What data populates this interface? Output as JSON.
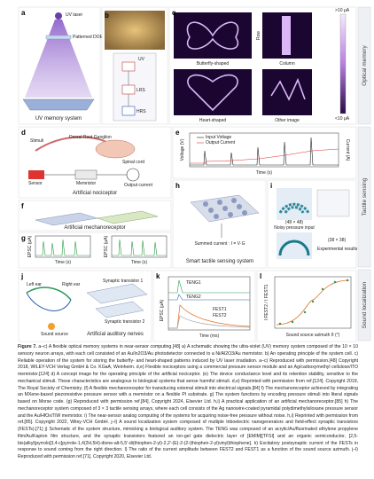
{
  "side_labels": [
    "Optical memory",
    "Tactile sensing",
    "Sound localization"
  ],
  "panels": [
    {
      "letter": "a",
      "texts": [
        "UV laser",
        "Patterned DOE",
        "UV memory system"
      ]
    },
    {
      "letter": "b",
      "texts": [
        "UV",
        "LRS",
        "HRS"
      ]
    },
    {
      "letter": "c",
      "texts": [
        "Butterfly-shaped",
        "Column",
        "Row",
        "Heart-shaped",
        "Other image",
        ">10 μA",
        "<10 μA"
      ]
    },
    {
      "letter": "d",
      "texts": [
        "Stimuli",
        "Dorsal Root Ganglion",
        "Spinal cord",
        "Sensor",
        "Memristor",
        "Output current",
        "Artificial nociceptor"
      ]
    },
    {
      "letter": "e",
      "texts": [
        "Input Voltage",
        "Output Current",
        "Time (s)",
        "Voltage (V)",
        "Current (A)"
      ]
    },
    {
      "letter": "f",
      "texts": [
        "Artificial mechanoreceptor"
      ]
    },
    {
      "letter": "g",
      "texts": [
        "Time (s)",
        "Time (s)",
        "EPSC (μA)",
        "EPSC (μA)"
      ]
    },
    {
      "letter": "h",
      "texts": [
        "Summed current : I = V·G",
        "Smart tactile sensing system"
      ]
    },
    {
      "letter": "i",
      "texts": [
        "(48 × 48)",
        "Noisy pressure input",
        "(38 × 38)",
        "Experimental results"
      ]
    },
    {
      "letter": "j",
      "texts": [
        "Left ear",
        "Right ear",
        "Synaptic transistor 1",
        "Synaptic transistor 2",
        "Sound source",
        "Artificial auditory nerves"
      ]
    },
    {
      "letter": "k",
      "texts": [
        "TENG1",
        "TENG2",
        "FEST1",
        "FEST2",
        "EPSC (μA)",
        "Time (ms)"
      ]
    },
    {
      "letter": "l",
      "texts": [
        "Sound source azimuth θ (°)",
        "I FEST2 / I FEST1"
      ]
    }
  ],
  "caption": {
    "label": "Figure 7.",
    "text": "a–c) A flexible optical memory systems in near-sensor computing.[48] a) A schematic showing the ultra-violet (UV) memory system composed of the 10 × 10 sensory neuron arrays, with each cell consisted of an Au/In2O3/Au photodetector connected to a Ni/Al2O3/Au memristor. b) An operating principle of the system cell. c) Reliable operation of the system for storing the butterfly- and heart-shaped patterns induced by UV laser irradiation. a–c) Reproduced with permission.[48] Copyright 2018, WILEY-VCH Verlag GmbH & Co. KGaA, Weinheim. d,e) Flexible nociceptors using a commercial pressure sensor module and an Ag/carboxymethyl cellulose/ITO memristor.[124] d) A concept image for the operating principle of the artificial nociceptor. (e) The device conductance level and its retention stability, sensitive to the mechanical stimuli. These characteristics are analogous to biological systems that sense harmful stimuli. d,e) Reprinted with permission from ref.[124]. Copyright 2019, The Royal Society of Chemistry. (f) A flexible mechanoreceptor for transducing external stimuli into electrical signals.[84] f) The mechanoreceptor achieved by integrating an MXene-based piezoresistive pressure sensor with a memristor on a flexible PI substrate. g) The system functions by encoding pressure stimuli into literal signals based on Morse code. (g) Reproduced with permission ref.[84]. Copyright 2024, Elsevier Ltd. h,i) A practical application of an artificial mechanoreceptor.[85] h) The mechanoreceptor system composed of 3 × 3 tactile sensing arrays, where each cell consists of the Ag nanowire-coated pyramidal polydimethylsiloxane pressure sensor and the Au/HfOx/TiW memristor. i) The near-sensor analog computing of the systems for acquiring noise-free pressure without noise. h,i) Reprinted with permission from ref.[85]. Copyright 2022, Wiley-VCH GmbH. j–l) A sound localization system composed of multiple triboelectric nanogenerators and field-effect synaptic transistors (FESTs).[71] j) Schematic of the system structure, mimicking a biological auditory system. The TENG was composed of an acrylic/Au/fluorinated ethylene propylene film/Au/Kapton film structure, and the synaptic transistors featured an ion-gel gate dielectric layer of [EMIM][TFSI] and an organic semiconductor, [2,5-bis(alkyl)pyrrolo[3,4-c]pyrrole-1,4(2H,5H)-dione-alt-5,5'-di(thiophen-2-yl)-2,2'-(E)-2-(2-(thiophen-2-yl)vinyl)thiophene]. k) Excitatory postsynaptic current of the FESTs in response to sound coming from the right direction. l) The ratio of the current amplitude between FEST2 and FEST1 as a function of the sound source azimuth. j–l) Reproduced with permission ref.[71]. Copyright 2020, Elsevier Ltd."
  }
}
